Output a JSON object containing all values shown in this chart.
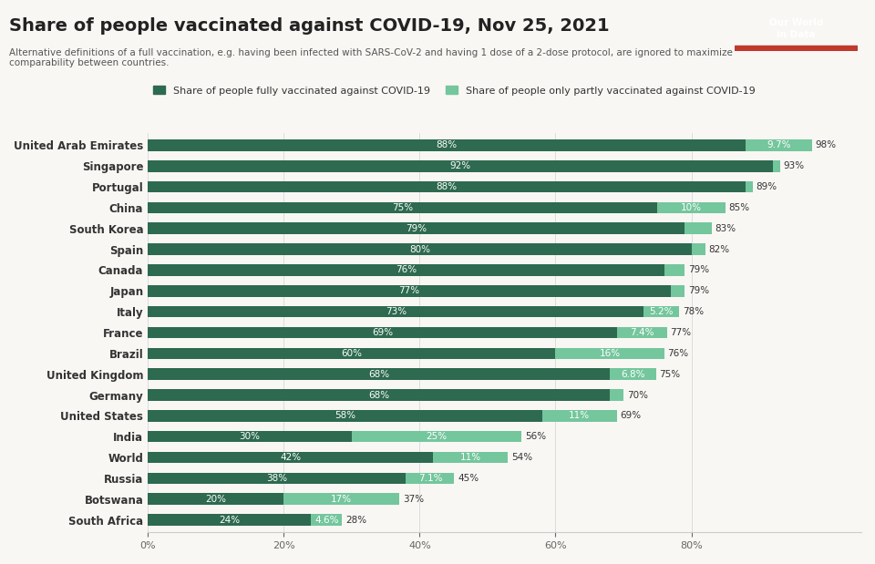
{
  "title": "Share of people vaccinated against COVID-19, Nov 25, 2021",
  "subtitle": "Alternative definitions of a full vaccination, e.g. having been infected with SARS-CoV-2 and having 1 dose of a 2-dose protocol, are ignored to maximize\ncomparability between countries.",
  "legend_full": "Share of people fully vaccinated against COVID-19",
  "legend_partial": "Share of people only partly vaccinated against COVID-19",
  "color_full": "#2d6a4f",
  "color_partial": "#74c69d",
  "background": "#f9f7f4",
  "categories": [
    "South Africa",
    "Botswana",
    "Russia",
    "World",
    "India",
    "United States",
    "Germany",
    "United Kingdom",
    "Brazil",
    "France",
    "Italy",
    "Japan",
    "Canada",
    "Spain",
    "South Korea",
    "China",
    "Portugal",
    "Singapore",
    "United Arab Emirates"
  ],
  "fully_vaccinated": [
    24,
    20,
    38,
    42,
    30,
    58,
    68,
    68,
    60,
    69,
    73,
    77,
    76,
    80,
    79,
    75,
    88,
    92,
    88
  ],
  "partly_vaccinated": [
    4.6,
    17,
    7.1,
    11,
    25,
    11,
    2,
    6.8,
    16,
    7.4,
    5.2,
    2,
    3,
    2,
    4,
    10,
    1,
    1,
    9.7
  ],
  "total_labels": [
    "28%",
    "37%",
    "45%",
    "54%",
    "56%",
    "69%",
    "70%",
    "75%",
    "76%",
    "77%",
    "78%",
    "79%",
    "79%",
    "82%",
    "83%",
    "85%",
    "89%",
    "93%",
    "98%"
  ],
  "full_labels": [
    "24%",
    "20%",
    "38%",
    "42%",
    "30%",
    "58%",
    "68%",
    "68%",
    "60%",
    "69%",
    "73%",
    "77%",
    "76%",
    "80%",
    "79%",
    "75%",
    "88%",
    "92%",
    "88%"
  ],
  "partial_labels": [
    "4.6%",
    "17%",
    "7.1%",
    "11%",
    "25%",
    "11%",
    "",
    "6.8%",
    "16%",
    "7.4%",
    "5.2%",
    "",
    "",
    "",
    "",
    "10%",
    "",
    "",
    "9.7%"
  ],
  "figsize": [
    9.6,
    6.19
  ],
  "dpi": 100
}
